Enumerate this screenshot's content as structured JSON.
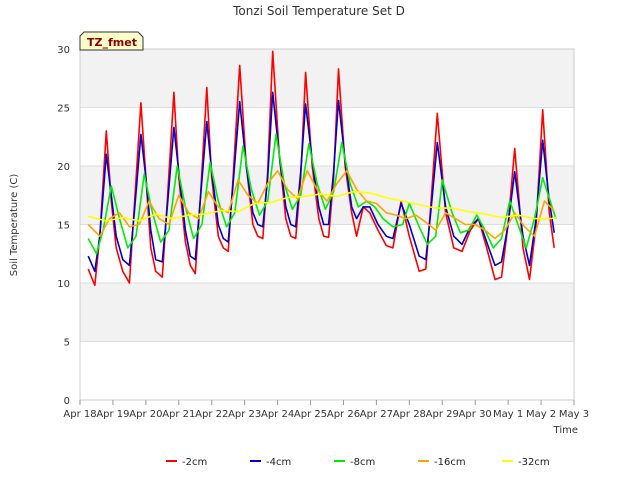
{
  "chart_data": {
    "type": "line",
    "title": "Tonzi Soil Temperature Set D",
    "xlabel": "Time",
    "ylabel": "Soil Temperature (C)",
    "badge": "TZ_fmet",
    "ylim": [
      0,
      30
    ],
    "yticks": [
      0,
      5,
      10,
      15,
      20,
      25,
      30
    ],
    "xlim": [
      0,
      15
    ],
    "xticks": [
      {
        "x": 0,
        "label": "Apr 18"
      },
      {
        "x": 1,
        "label": "Apr 19"
      },
      {
        "x": 2,
        "label": "Apr 20"
      },
      {
        "x": 3,
        "label": "Apr 21"
      },
      {
        "x": 4,
        "label": "Apr 22"
      },
      {
        "x": 5,
        "label": "Apr 23"
      },
      {
        "x": 6,
        "label": "Apr 24"
      },
      {
        "x": 7,
        "label": "Apr 25"
      },
      {
        "x": 8,
        "label": "Apr 26"
      },
      {
        "x": 9,
        "label": "Apr 27"
      },
      {
        "x": 10,
        "label": "Apr 28"
      },
      {
        "x": 11,
        "label": "Apr 29"
      },
      {
        "x": 12,
        "label": "Apr 30"
      },
      {
        "x": 13,
        "label": "May 1"
      },
      {
        "x": 14,
        "label": "May 2"
      },
      {
        "x": 15,
        "label": "May 3"
      }
    ],
    "grid": true,
    "legend_position": "bottom",
    "series": [
      {
        "name": "-2cm",
        "color": "#ff0000",
        "x": [
          0.25,
          0.45,
          0.6,
          0.8,
          0.95,
          1.1,
          1.3,
          1.5,
          1.65,
          1.85,
          2.0,
          2.15,
          2.3,
          2.5,
          2.65,
          2.85,
          3.0,
          3.2,
          3.35,
          3.5,
          3.65,
          3.85,
          4.0,
          4.2,
          4.35,
          4.5,
          4.65,
          4.85,
          5.05,
          5.25,
          5.4,
          5.55,
          5.7,
          5.85,
          6.05,
          6.25,
          6.4,
          6.55,
          6.7,
          6.85,
          7.05,
          7.25,
          7.4,
          7.55,
          7.7,
          7.85,
          8.05,
          8.25,
          8.4,
          8.6,
          8.8,
          9.05,
          9.3,
          9.5,
          9.75,
          10.0,
          10.3,
          10.5,
          10.65,
          10.85,
          11.1,
          11.35,
          11.6,
          11.85,
          12.1,
          12.35,
          12.6,
          12.8,
          13.0,
          13.2,
          13.45,
          13.65,
          13.85,
          14.05,
          14.25,
          14.4
        ],
        "y": [
          11.2,
          9.8,
          14.0,
          23.0,
          17.0,
          13.0,
          11.0,
          10.0,
          16.5,
          25.4,
          19.0,
          13.0,
          11.0,
          10.5,
          17.0,
          26.3,
          19.0,
          13.5,
          11.5,
          10.8,
          17.0,
          26.7,
          19.0,
          14.0,
          13.0,
          12.7,
          19.0,
          28.6,
          20.0,
          15.0,
          14.0,
          13.8,
          19.5,
          29.8,
          21.0,
          15.5,
          14.0,
          13.8,
          19.0,
          28.0,
          20.0,
          15.5,
          14.0,
          13.9,
          19.0,
          28.3,
          20.0,
          16.0,
          14.0,
          16.5,
          16.0,
          14.5,
          13.2,
          13.0,
          17.0,
          14.0,
          11.0,
          11.2,
          16.5,
          24.5,
          16.0,
          13.0,
          12.7,
          14.5,
          15.5,
          13.0,
          10.3,
          10.5,
          15.0,
          21.5,
          13.0,
          10.3,
          15.0,
          24.8,
          16.0,
          13.0
        ]
      },
      {
        "name": "-4cm",
        "color": "#0000cc",
        "x": [
          0.25,
          0.45,
          0.6,
          0.8,
          0.95,
          1.1,
          1.3,
          1.5,
          1.65,
          1.85,
          2.0,
          2.15,
          2.3,
          2.5,
          2.65,
          2.85,
          3.0,
          3.2,
          3.35,
          3.5,
          3.65,
          3.85,
          4.0,
          4.2,
          4.35,
          4.5,
          4.65,
          4.85,
          5.05,
          5.25,
          5.4,
          5.55,
          5.7,
          5.85,
          6.05,
          6.25,
          6.4,
          6.55,
          6.7,
          6.85,
          7.05,
          7.25,
          7.4,
          7.55,
          7.7,
          7.85,
          8.05,
          8.25,
          8.4,
          8.6,
          8.8,
          9.05,
          9.3,
          9.5,
          9.75,
          10.0,
          10.3,
          10.5,
          10.65,
          10.85,
          11.1,
          11.35,
          11.6,
          11.85,
          12.1,
          12.35,
          12.6,
          12.8,
          13.0,
          13.2,
          13.45,
          13.65,
          13.85,
          14.05,
          14.25,
          14.4
        ],
        "y": [
          12.3,
          11.0,
          14.0,
          21.0,
          17.5,
          14.0,
          12.0,
          11.5,
          16.0,
          22.7,
          19.0,
          14.5,
          12.0,
          11.8,
          16.5,
          23.3,
          19.5,
          14.5,
          12.3,
          12.0,
          17.0,
          23.8,
          19.5,
          15.0,
          13.8,
          13.5,
          18.5,
          25.5,
          20.0,
          16.0,
          15.0,
          14.8,
          19.0,
          26.3,
          21.0,
          16.5,
          15.0,
          14.8,
          19.5,
          25.3,
          20.5,
          16.5,
          15.0,
          15.0,
          19.5,
          25.6,
          20.5,
          16.5,
          15.5,
          16.5,
          16.5,
          15.0,
          14.0,
          13.8,
          16.8,
          15.0,
          12.3,
          12.0,
          16.0,
          22.0,
          16.5,
          14.0,
          13.3,
          14.8,
          15.5,
          13.5,
          11.5,
          11.8,
          15.0,
          19.5,
          14.0,
          11.5,
          15.5,
          22.2,
          17.0,
          14.3
        ]
      },
      {
        "name": "-8cm",
        "color": "#00ee00",
        "x": [
          0.25,
          0.5,
          0.7,
          0.95,
          1.2,
          1.45,
          1.7,
          1.95,
          2.2,
          2.45,
          2.7,
          2.95,
          3.2,
          3.45,
          3.7,
          3.95,
          4.2,
          4.45,
          4.7,
          4.95,
          5.2,
          5.45,
          5.7,
          5.95,
          6.2,
          6.45,
          6.7,
          6.95,
          7.2,
          7.45,
          7.7,
          7.95,
          8.2,
          8.45,
          8.7,
          8.95,
          9.2,
          9.5,
          9.8,
          10.0,
          10.3,
          10.55,
          10.8,
          11.0,
          11.3,
          11.55,
          11.8,
          12.05,
          12.3,
          12.55,
          12.8,
          13.05,
          13.3,
          13.55,
          13.8,
          14.05,
          14.3,
          14.45
        ],
        "y": [
          13.8,
          12.5,
          14.5,
          18.3,
          15.5,
          13.0,
          14.0,
          19.3,
          16.0,
          13.5,
          14.5,
          20.0,
          16.5,
          13.8,
          15.0,
          20.3,
          17.0,
          14.8,
          16.0,
          21.7,
          18.0,
          15.8,
          17.0,
          22.7,
          18.5,
          16.3,
          17.5,
          21.9,
          18.5,
          16.3,
          17.8,
          22.0,
          18.5,
          16.5,
          17.0,
          16.5,
          15.5,
          14.8,
          15.0,
          16.8,
          14.8,
          13.3,
          14.0,
          18.8,
          16.0,
          14.3,
          14.5,
          15.8,
          14.5,
          13.0,
          13.8,
          17.0,
          15.0,
          13.0,
          15.5,
          19.0,
          16.8,
          15.5
        ]
      },
      {
        "name": "-16cm",
        "color": "#ffa500",
        "x": [
          0.25,
          0.6,
          0.9,
          1.2,
          1.5,
          1.8,
          2.1,
          2.4,
          2.7,
          3.0,
          3.3,
          3.6,
          3.9,
          4.2,
          4.5,
          4.8,
          5.1,
          5.4,
          5.7,
          6.0,
          6.3,
          6.6,
          6.9,
          7.2,
          7.5,
          7.8,
          8.1,
          8.4,
          8.7,
          9.0,
          9.3,
          9.6,
          9.9,
          10.2,
          10.5,
          10.8,
          11.1,
          11.4,
          11.7,
          12.0,
          12.3,
          12.6,
          12.9,
          13.2,
          13.5,
          13.8,
          14.1,
          14.4
        ],
        "y": [
          15.0,
          14.0,
          15.5,
          16.0,
          14.8,
          15.0,
          17.0,
          15.5,
          15.0,
          17.5,
          16.0,
          15.5,
          17.8,
          16.5,
          16.0,
          18.8,
          17.5,
          16.8,
          18.5,
          19.6,
          18.0,
          17.2,
          19.6,
          18.0,
          17.0,
          18.5,
          19.6,
          18.0,
          17.0,
          16.8,
          16.0,
          15.8,
          15.5,
          15.8,
          15.2,
          14.5,
          16.0,
          15.5,
          15.0,
          15.0,
          14.5,
          13.8,
          14.5,
          16.0,
          14.8,
          14.0,
          17.0,
          16.2
        ]
      },
      {
        "name": "-32cm",
        "color": "#ffff00",
        "x": [
          0.25,
          0.8,
          1.3,
          1.8,
          2.3,
          2.8,
          3.3,
          3.8,
          4.3,
          4.8,
          5.3,
          5.8,
          6.3,
          6.8,
          7.3,
          7.8,
          8.3,
          8.8,
          9.3,
          9.8,
          10.3,
          10.8,
          11.3,
          11.8,
          12.3,
          12.8,
          13.3,
          13.8,
          14.3,
          14.45
        ],
        "y": [
          15.7,
          15.3,
          15.6,
          15.3,
          15.9,
          15.5,
          15.8,
          15.9,
          16.2,
          16.1,
          16.8,
          16.9,
          17.3,
          17.4,
          17.6,
          17.4,
          17.8,
          17.7,
          17.3,
          17.0,
          16.7,
          16.4,
          16.4,
          16.1,
          15.9,
          15.6,
          15.8,
          15.5,
          15.5,
          15.6
        ]
      }
    ]
  }
}
